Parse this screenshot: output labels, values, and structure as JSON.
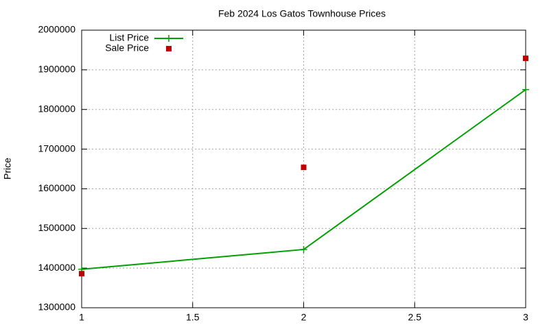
{
  "chart_data": {
    "type": "line",
    "title": "Feb 2024 Los Gatos Townhouse Prices",
    "y_label": "Price",
    "x": [
      1,
      2,
      3
    ],
    "series": [
      {
        "name": "List Price",
        "color": "#00a000",
        "style": "linespoints",
        "values": [
          1397000,
          1447000,
          1850000
        ]
      },
      {
        "name": "Sale Price",
        "color": "#c00000",
        "style": "points",
        "values": [
          1386000,
          1654000,
          1929000
        ]
      }
    ],
    "xlim": [
      1,
      3
    ],
    "xticks": [
      1,
      1.5,
      2,
      2.5,
      3
    ],
    "ylim": [
      1300000,
      2000000
    ],
    "yticks": [
      1300000,
      1400000,
      1500000,
      1600000,
      1700000,
      1800000,
      1900000,
      2000000
    ],
    "grid": true,
    "legend": "top-left"
  }
}
